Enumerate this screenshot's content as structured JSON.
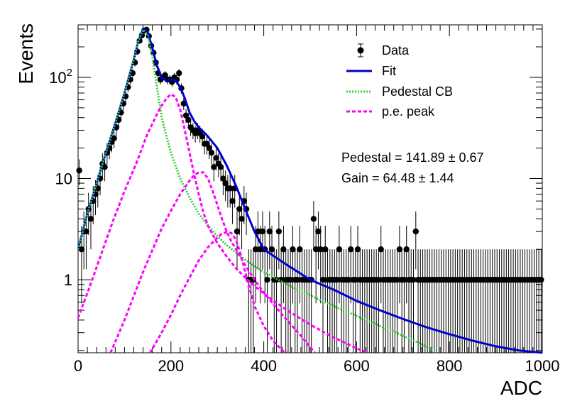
{
  "chart_data": {
    "type": "scatter",
    "xlabel": "ADC",
    "ylabel": "Events",
    "xlim": [
      0,
      1000
    ],
    "ylim": [
      0.19,
      330
    ],
    "yscale": "log",
    "x_ticks": [
      "0",
      "200",
      "400",
      "600",
      "800",
      "1000"
    ],
    "y_ticks": [
      "1",
      "10",
      "10^2"
    ],
    "legend": [
      {
        "label": "Data",
        "style": "marker-errorbar",
        "color": "#000000"
      },
      {
        "label": "Fit",
        "style": "solid",
        "color": "#0000cc"
      },
      {
        "label": "Pedestal CB",
        "style": "dotted",
        "color": "#33cc33"
      },
      {
        "label": "p.e. peak",
        "style": "dashed",
        "color": "#ff00ff"
      }
    ],
    "legend_position": "top-right",
    "annotations": [
      "Pedestal = 141.89 ± 0.67",
      "Gain = 64.48 ± 1.44"
    ],
    "fit_params": {
      "pedestal": 141.89,
      "pedestal_err": 0.67,
      "gain": 64.48,
      "gain_err": 1.44
    },
    "bin_width": 5,
    "series": [
      {
        "name": "Data",
        "kind": "histogram-points",
        "x": [
          0,
          5,
          10,
          15,
          20,
          25,
          30,
          35,
          40,
          45,
          50,
          55,
          60,
          65,
          70,
          75,
          80,
          85,
          90,
          95,
          100,
          105,
          110,
          115,
          120,
          125,
          130,
          135,
          140,
          145,
          150,
          155,
          160,
          165,
          170,
          175,
          180,
          185,
          190,
          195,
          200,
          205,
          210,
          215,
          220,
          225,
          230,
          235,
          240,
          245,
          250,
          255,
          260,
          265,
          270,
          275,
          280,
          285,
          290,
          295,
          300,
          305,
          310,
          315,
          320,
          325,
          330,
          335,
          340,
          345,
          350,
          355,
          360,
          365,
          370,
          375,
          380,
          385,
          390,
          395,
          400,
          405,
          410,
          415,
          420,
          425,
          430,
          435,
          440,
          445,
          450,
          455,
          460,
          465,
          470,
          475,
          480,
          485,
          490,
          495,
          500,
          505,
          510,
          515,
          520,
          525,
          530,
          535,
          540,
          545,
          550,
          555,
          560,
          565,
          570,
          575,
          580,
          585,
          590,
          595,
          600,
          605,
          610,
          615,
          620,
          625,
          630,
          635,
          640,
          645,
          650,
          655,
          660,
          665,
          670,
          675,
          680,
          685,
          690,
          695,
          700,
          705,
          710,
          715,
          720,
          725,
          730,
          735,
          740,
          745,
          750,
          755,
          760,
          765,
          770,
          775,
          780,
          785,
          790,
          795,
          800,
          805,
          810,
          815,
          820,
          825,
          830,
          835,
          840,
          845,
          850,
          855,
          860,
          865,
          870,
          875,
          880,
          885,
          890,
          895,
          900,
          905,
          910,
          915,
          920,
          925,
          930,
          935,
          940,
          945,
          950,
          955,
          960,
          965,
          970,
          975,
          980,
          985,
          990,
          995
        ],
        "y": [
          12,
          2,
          3,
          3,
          5,
          4,
          6,
          7,
          8,
          10,
          14,
          13,
          18,
          20,
          23,
          25,
          32,
          38,
          45,
          55,
          65,
          80,
          95,
          110,
          140,
          180,
          230,
          260,
          290,
          295,
          255,
          205,
          175,
          140,
          110,
          95,
          100,
          105,
          95,
          95,
          90,
          100,
          95,
          110,
          78,
          55,
          42,
          38,
          32,
          30,
          28,
          30,
          28,
          26,
          22,
          22,
          20,
          18,
          13,
          16,
          14,
          13,
          10,
          9,
          8,
          8,
          6,
          8,
          3,
          5,
          4,
          6,
          5,
          1,
          1,
          1,
          2,
          3,
          2,
          3,
          2,
          1,
          3,
          2,
          1,
          1,
          3,
          1,
          2,
          1,
          1,
          1,
          2,
          1,
          1,
          2,
          1,
          1,
          1,
          1,
          1,
          4,
          2,
          3,
          2,
          1,
          2,
          1,
          1,
          1,
          1,
          1,
          2,
          1,
          1,
          1,
          1,
          2,
          1,
          1,
          2,
          1,
          1,
          1,
          1,
          1,
          1,
          1,
          1,
          1,
          2,
          1,
          1,
          1,
          1,
          1,
          1,
          1,
          2,
          1,
          1,
          2,
          1,
          1,
          1,
          3,
          1,
          1,
          1,
          1,
          1,
          1,
          1,
          1,
          1,
          1,
          1,
          1,
          1,
          1,
          1,
          1,
          1,
          1,
          1,
          1,
          1,
          1,
          1,
          1,
          1,
          1,
          1,
          1,
          1,
          1,
          1,
          1,
          1,
          1,
          1,
          1,
          1,
          1,
          1,
          1,
          1,
          1,
          1,
          1,
          1,
          1,
          1,
          1,
          1,
          1,
          1,
          1,
          1,
          1
        ]
      },
      {
        "name": "Fit",
        "kind": "line",
        "x": [
          0,
          20,
          40,
          60,
          80,
          100,
          120,
          130,
          140,
          150,
          160,
          170,
          180,
          190,
          200,
          210,
          220,
          230,
          240,
          250,
          260,
          270,
          280,
          300,
          320,
          340,
          360,
          380,
          400,
          450,
          500,
          550,
          600,
          650,
          700,
          750,
          800,
          850,
          900,
          950,
          1000
        ],
        "y": [
          2.0,
          4.5,
          9.0,
          18,
          35,
          70,
          150,
          230,
          300,
          280,
          195,
          130,
          100,
          92,
          95,
          93,
          80,
          62,
          45,
          37,
          32,
          29,
          26,
          20,
          13.5,
          8.5,
          5.0,
          3.0,
          2.0,
          1.4,
          1.0,
          0.8,
          0.62,
          0.5,
          0.41,
          0.34,
          0.29,
          0.25,
          0.22,
          0.2,
          0.19
        ]
      },
      {
        "name": "Pedestal CB",
        "kind": "line",
        "x": [
          0,
          20,
          40,
          60,
          80,
          100,
          120,
          130,
          140,
          150,
          160,
          170,
          180,
          200,
          220,
          240,
          260,
          280,
          300,
          320,
          340,
          360,
          380,
          400,
          450,
          500,
          550,
          600,
          650,
          700,
          750,
          770
        ],
        "y": [
          2.0,
          4.5,
          9.0,
          18,
          35,
          70,
          150,
          230,
          295,
          260,
          160,
          80,
          40,
          18,
          10,
          6.5,
          4.5,
          3.4,
          2.7,
          2.2,
          1.85,
          1.58,
          1.36,
          1.2,
          0.9,
          0.7,
          0.55,
          0.44,
          0.35,
          0.28,
          0.22,
          0.2
        ]
      },
      {
        "name": "p.e. peak (1 p.e.)",
        "kind": "line",
        "x": [
          0,
          25,
          50,
          75,
          100,
          125,
          150,
          175,
          190,
          200,
          210,
          220,
          230,
          240,
          250,
          260,
          270,
          280,
          300,
          320,
          340,
          360,
          380,
          400,
          450,
          500,
          550,
          600,
          625
        ],
        "y": [
          0.42,
          0.85,
          1.8,
          3.8,
          7.5,
          14,
          28,
          48,
          62,
          68,
          64,
          48,
          30,
          18,
          11,
          7,
          4.6,
          3.4,
          2.3,
          1.7,
          1.3,
          1.05,
          0.87,
          0.73,
          0.5,
          0.36,
          0.27,
          0.21,
          0.19
        ]
      },
      {
        "name": "p.e. peak (2 p.e.)",
        "kind": "line",
        "x": [
          70,
          100,
          140,
          180,
          200,
          220,
          240,
          250,
          260,
          270,
          280,
          290,
          300,
          310,
          320,
          330,
          340,
          360,
          380,
          400,
          440,
          480,
          510
        ],
        "y": [
          0.19,
          0.4,
          1.2,
          3.2,
          4.8,
          7.0,
          9.5,
          10.8,
          11.5,
          11.5,
          10,
          7.5,
          5.5,
          4.0,
          3.0,
          2.4,
          2.0,
          1.4,
          1.0,
          0.75,
          0.45,
          0.28,
          0.19
        ]
      },
      {
        "name": "p.e. peak (3 p.e.)",
        "kind": "line",
        "x": [
          155,
          180,
          200,
          220,
          240,
          260,
          280,
          300,
          310,
          320,
          330,
          340,
          350,
          360,
          370,
          380,
          400,
          420,
          440,
          450
        ],
        "y": [
          0.19,
          0.3,
          0.45,
          0.7,
          1.05,
          1.55,
          2.1,
          2.6,
          2.85,
          2.95,
          2.9,
          2.5,
          1.8,
          1.2,
          0.8,
          0.55,
          0.35,
          0.25,
          0.2,
          0.19
        ]
      }
    ]
  }
}
